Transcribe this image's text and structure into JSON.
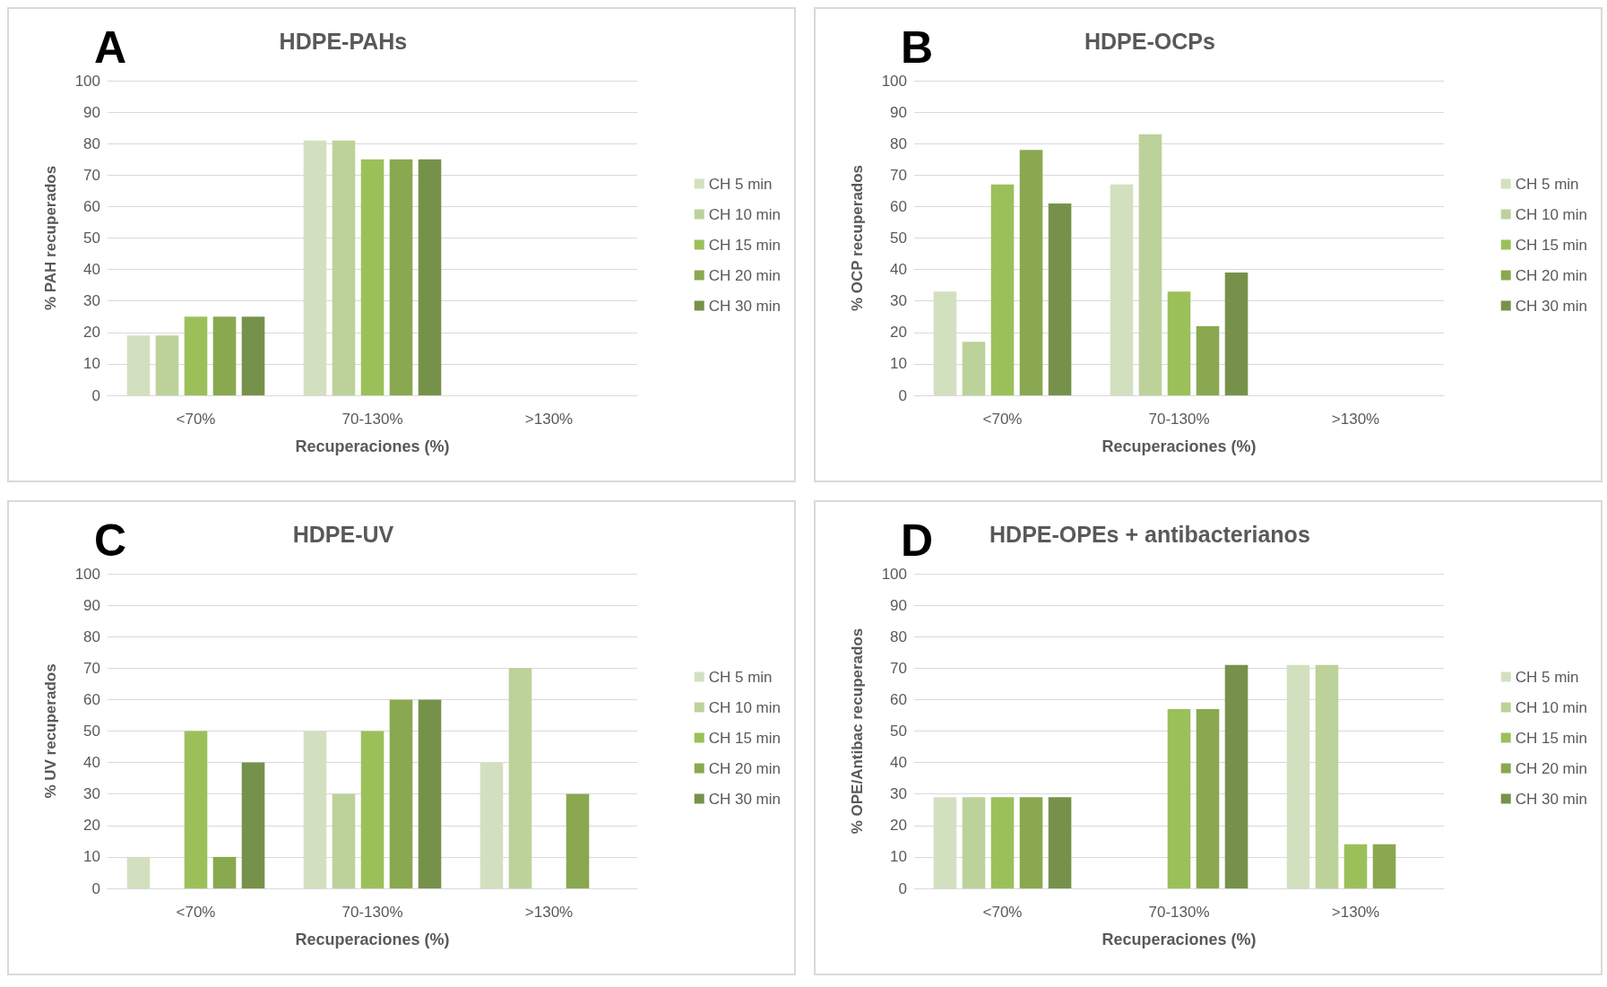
{
  "chart_data": [
    {
      "type": "bar",
      "title": "HDPE-PAHs",
      "annotations": [
        "A"
      ],
      "xlabel": "Recuperaciones (%)",
      "ylabel": "% PAH recuperados",
      "categories": [
        "<70%",
        "70-130%",
        ">130%"
      ],
      "ylim": [
        0,
        100
      ],
      "yticks": [
        0,
        10,
        20,
        30,
        40,
        50,
        60,
        70,
        80,
        90,
        100
      ],
      "grid": "y",
      "legend": "right",
      "series": [
        {
          "name": "CH 5 min",
          "color": "#d3e0bf",
          "values": [
            19,
            81,
            0
          ]
        },
        {
          "name": "CH 10 min",
          "color": "#bcd29a",
          "values": [
            19,
            81,
            0
          ]
        },
        {
          "name": "CH 15 min",
          "color": "#9bc05a",
          "values": [
            25,
            75,
            0
          ]
        },
        {
          "name": "CH 20 min",
          "color": "#8aa84f",
          "values": [
            25,
            75,
            0
          ]
        },
        {
          "name": "CH 30 min",
          "color": "#76924a",
          "values": [
            25,
            75,
            0
          ]
        }
      ]
    },
    {
      "type": "bar",
      "title": "HDPE-OCPs",
      "annotations": [
        "B"
      ],
      "xlabel": "Recuperaciones (%)",
      "ylabel": "% OCP recuperados",
      "categories": [
        "<70%",
        "70-130%",
        ">130%"
      ],
      "ylim": [
        0,
        100
      ],
      "yticks": [
        0,
        10,
        20,
        30,
        40,
        50,
        60,
        70,
        80,
        90,
        100
      ],
      "grid": "y",
      "legend": "right",
      "series": [
        {
          "name": "CH 5 min",
          "color": "#d3e0bf",
          "values": [
            33,
            67,
            0
          ]
        },
        {
          "name": "CH 10 min",
          "color": "#bcd29a",
          "values": [
            17,
            83,
            0
          ]
        },
        {
          "name": "CH 15 min",
          "color": "#9bc05a",
          "values": [
            67,
            33,
            0
          ]
        },
        {
          "name": "CH 20 min",
          "color": "#8aa84f",
          "values": [
            78,
            22,
            0
          ]
        },
        {
          "name": "CH 30 min",
          "color": "#76924a",
          "values": [
            61,
            39,
            0
          ]
        }
      ]
    },
    {
      "type": "bar",
      "title": "HDPE-UV",
      "annotations": [
        "C"
      ],
      "xlabel": "Recuperaciones (%)",
      "ylabel": "% UV recuperados",
      "categories": [
        "<70%",
        "70-130%",
        ">130%"
      ],
      "ylim": [
        0,
        100
      ],
      "yticks": [
        0,
        10,
        20,
        30,
        40,
        50,
        60,
        70,
        80,
        90,
        100
      ],
      "grid": "y",
      "legend": "right",
      "series": [
        {
          "name": "CH 5 min",
          "color": "#d3e0bf",
          "values": [
            10,
            50,
            40
          ]
        },
        {
          "name": "CH 10 min",
          "color": "#bcd29a",
          "values": [
            0,
            30,
            70
          ]
        },
        {
          "name": "CH 15 min",
          "color": "#9bc05a",
          "values": [
            50,
            50,
            0
          ]
        },
        {
          "name": "CH 20 min",
          "color": "#8aa84f",
          "values": [
            10,
            60,
            30
          ]
        },
        {
          "name": "CH 30 min",
          "color": "#76924a",
          "values": [
            40,
            60,
            0
          ]
        }
      ]
    },
    {
      "type": "bar",
      "title": "HDPE-OPEs + antibacterianos",
      "annotations": [
        "D"
      ],
      "xlabel": "Recuperaciones (%)",
      "ylabel": "% OPE/Antibac recuperados",
      "categories": [
        "<70%",
        "70-130%",
        ">130%"
      ],
      "ylim": [
        0,
        100
      ],
      "yticks": [
        0,
        10,
        20,
        30,
        40,
        50,
        60,
        70,
        80,
        90,
        100
      ],
      "grid": "y",
      "legend": "right",
      "series": [
        {
          "name": "CH 5 min",
          "color": "#d3e0bf",
          "values": [
            29,
            0,
            71
          ]
        },
        {
          "name": "CH 10 min",
          "color": "#bcd29a",
          "values": [
            29,
            0,
            71
          ]
        },
        {
          "name": "CH 15 min",
          "color": "#9bc05a",
          "values": [
            29,
            57,
            14
          ]
        },
        {
          "name": "CH 20 min",
          "color": "#8aa84f",
          "values": [
            29,
            57,
            14
          ]
        },
        {
          "name": "CH 30 min",
          "color": "#76924a",
          "values": [
            29,
            71,
            0
          ]
        }
      ]
    }
  ]
}
